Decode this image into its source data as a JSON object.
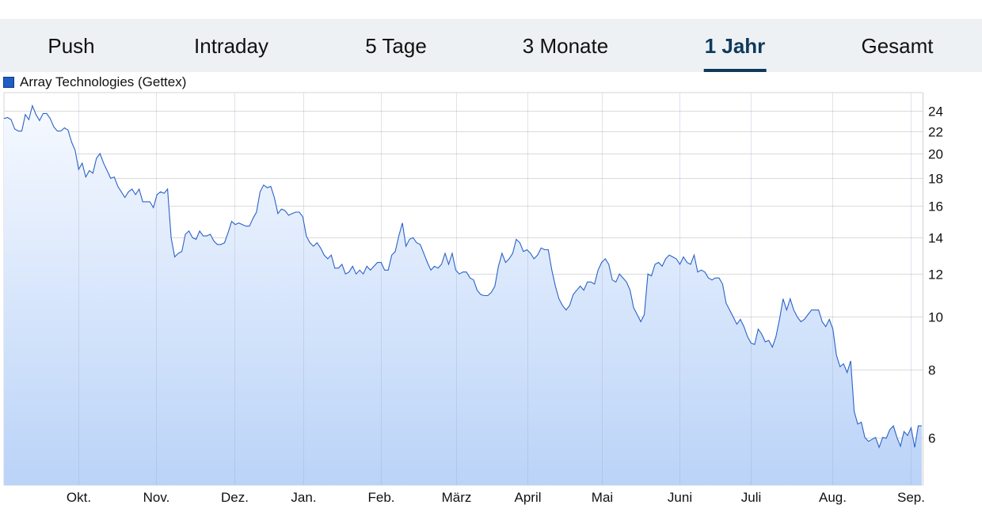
{
  "tabs": [
    {
      "label": "Push",
      "active": false
    },
    {
      "label": "Intraday",
      "active": false
    },
    {
      "label": "5 Tage",
      "active": false
    },
    {
      "label": "3 Monate",
      "active": false
    },
    {
      "label": "1 Jahr",
      "active": true
    },
    {
      "label": "Gesamt",
      "active": false
    }
  ],
  "colors": {
    "line": "#2a62c8",
    "fill_top": "#f6f9ff",
    "fill_bottom": "#bad3f8",
    "active_tab": "#0d3a5c",
    "tabbar_bg": "#eef1f4",
    "legend_swatch": "#1f5fc4"
  },
  "chart_data": {
    "type": "area",
    "title": "",
    "xlabel": "",
    "ylabel": "",
    "y_scale": "log",
    "ylim": [
      4.9,
      25.9
    ],
    "grid": true,
    "legend_placement": "top-left",
    "y_axis_side": "right",
    "x_ticks": [
      "Okt.",
      "Nov.",
      "Dez.",
      "Jan.",
      "Feb.",
      "März",
      "April",
      "Mai",
      "Juni",
      "Juli",
      "Aug.",
      "Sep."
    ],
    "y_ticks": [
      6,
      8,
      10,
      12,
      14,
      16,
      18,
      20,
      22,
      24
    ],
    "series": [
      {
        "name": "Array Technologies (Gettex)",
        "values": [
          23.2,
          23.3,
          23.1,
          22.2,
          22.0,
          22.0,
          23.6,
          23.1,
          24.5,
          23.6,
          23.0,
          23.7,
          23.7,
          23.2,
          22.4,
          22.0,
          22.0,
          22.3,
          22.1,
          21.0,
          20.3,
          18.7,
          19.2,
          18.1,
          18.6,
          18.4,
          19.6,
          20.0,
          19.2,
          18.6,
          18.0,
          18.1,
          17.4,
          17.0,
          16.6,
          17.0,
          17.2,
          16.8,
          17.2,
          16.3,
          16.3,
          16.3,
          15.9,
          16.8,
          17.0,
          16.9,
          17.2,
          14.0,
          12.9,
          13.1,
          13.2,
          14.2,
          14.4,
          14.0,
          13.9,
          14.4,
          14.1,
          14.1,
          14.2,
          13.8,
          13.6,
          13.6,
          13.7,
          14.3,
          15.0,
          14.8,
          14.9,
          14.8,
          14.7,
          14.7,
          15.2,
          15.6,
          17.0,
          17.5,
          17.3,
          17.4,
          16.6,
          15.5,
          15.8,
          15.7,
          15.4,
          15.5,
          15.6,
          15.6,
          15.3,
          14.1,
          13.7,
          13.5,
          13.7,
          13.4,
          13.0,
          12.8,
          13.0,
          12.3,
          12.3,
          12.5,
          12.0,
          12.1,
          12.4,
          12.0,
          12.2,
          12.0,
          12.4,
          12.2,
          12.4,
          12.6,
          12.6,
          12.2,
          12.2,
          13.0,
          13.2,
          14.1,
          14.9,
          13.5,
          13.9,
          14.0,
          13.7,
          13.6,
          13.1,
          12.6,
          12.2,
          12.4,
          12.3,
          12.5,
          13.1,
          12.5,
          13.1,
          12.2,
          12.0,
          12.1,
          12.1,
          11.8,
          11.7,
          11.2,
          11.0,
          10.95,
          10.95,
          11.1,
          11.4,
          12.4,
          13.1,
          12.6,
          12.8,
          13.1,
          13.9,
          13.7,
          13.2,
          13.3,
          13.1,
          12.8,
          13.0,
          13.4,
          13.3,
          13.3,
          12.2,
          11.4,
          10.8,
          10.5,
          10.3,
          10.5,
          11.0,
          11.2,
          11.4,
          11.2,
          11.6,
          11.6,
          11.5,
          12.2,
          12.6,
          12.8,
          12.5,
          11.7,
          11.6,
          12.0,
          11.8,
          11.6,
          11.2,
          10.4,
          10.1,
          9.8,
          10.1,
          12.0,
          11.9,
          12.5,
          12.6,
          12.4,
          12.8,
          13.0,
          12.9,
          12.8,
          12.5,
          12.9,
          12.6,
          12.5,
          13.0,
          12.1,
          12.2,
          12.1,
          11.8,
          11.7,
          11.8,
          11.8,
          11.5,
          10.6,
          10.3,
          10.0,
          9.7,
          9.9,
          9.6,
          9.2,
          8.95,
          8.9,
          9.5,
          9.3,
          9.0,
          9.05,
          8.8,
          9.2,
          9.9,
          10.8,
          10.3,
          10.8,
          10.3,
          10.0,
          9.8,
          9.9,
          10.1,
          10.3,
          10.3,
          10.3,
          9.8,
          9.6,
          9.9,
          9.5,
          8.5,
          8.1,
          8.2,
          7.9,
          8.3,
          6.7,
          6.35,
          6.4,
          6.0,
          5.9,
          5.95,
          6.0,
          5.75,
          6.0,
          5.98,
          6.2,
          6.3,
          6.0,
          5.78,
          6.15,
          6.05,
          6.25,
          5.75,
          6.3,
          6.3
        ]
      }
    ]
  }
}
